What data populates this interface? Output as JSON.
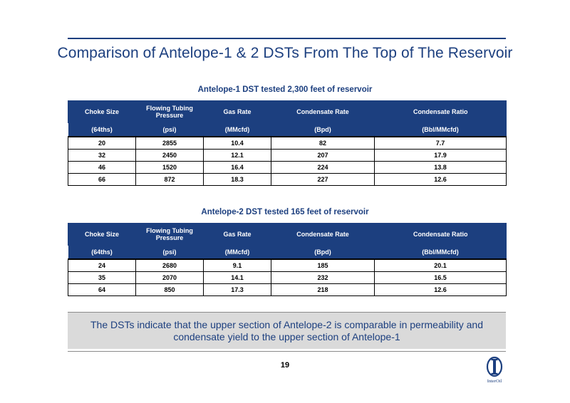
{
  "title": "Comparison of Antelope-1 & 2 DSTs From The Top of The Reservoir",
  "columns": {
    "headers": [
      "Choke Size",
      "Flowing Tubing Pressure",
      "Gas Rate",
      "Condensate Rate",
      "Condensate Ratio"
    ],
    "units": [
      "(64ths)",
      "(psi)",
      "(MMcfd)",
      "(Bpd)",
      "(Bbl/MMcfd)"
    ]
  },
  "table1": {
    "caption": "Antelope-1 DST tested 2,300 feet of reservoir",
    "rows": [
      [
        "20",
        "2855",
        "10.4",
        "82",
        "7.7"
      ],
      [
        "32",
        "2450",
        "12.1",
        "207",
        "17.9"
      ],
      [
        "46",
        "1520",
        "16.4",
        "224",
        "13.8"
      ],
      [
        "66",
        "872",
        "18.3",
        "227",
        "12.6"
      ]
    ]
  },
  "table2": {
    "caption": "Antelope-2 DST tested 165 feet of reservoir",
    "rows": [
      [
        "24",
        "2680",
        "9.1",
        "185",
        "20.1"
      ],
      [
        "35",
        "2070",
        "14.1",
        "232",
        "16.5"
      ],
      [
        "64",
        "850",
        "17.3",
        "218",
        "12.6"
      ]
    ]
  },
  "summary": "The DSTs indicate that the upper section of Antelope-2 is comparable in permeability and condensate yield to the upper section of Antelope-1",
  "page_number": "19",
  "logo": {
    "icon": "interoil-logo",
    "text": "InterOil"
  },
  "colors": {
    "brand_blue": "#1c3f7f",
    "summary_bg": "#dadada"
  }
}
